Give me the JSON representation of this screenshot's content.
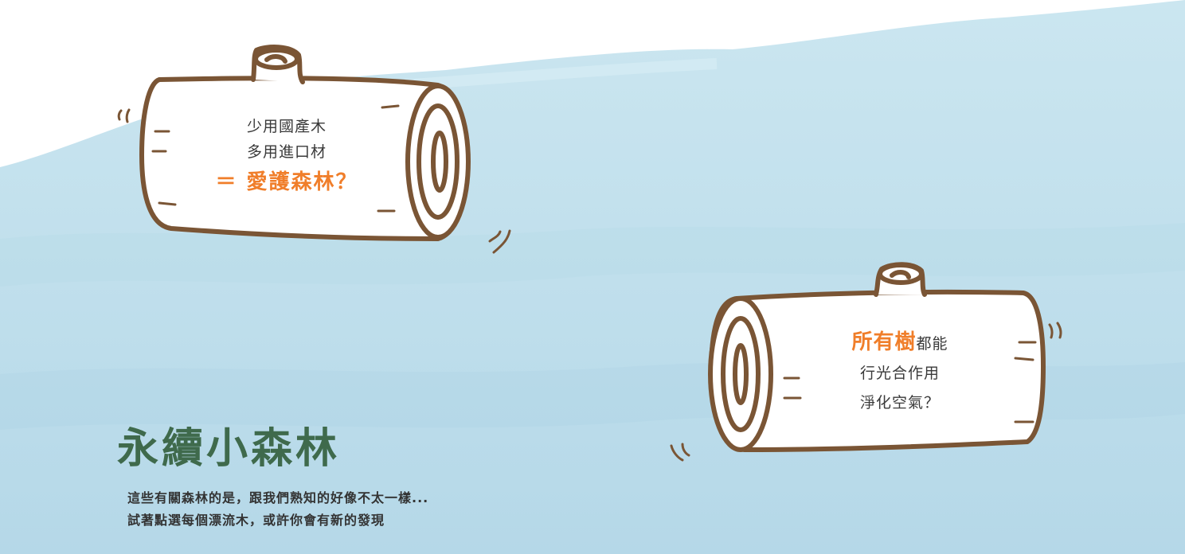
{
  "logs": [
    {
      "line1": "少用國產木",
      "line2": "多用進口材",
      "highlight": "＝ 愛護森林？"
    },
    {
      "highlight": "所有樹",
      "line1_rest": "都能",
      "line2": "行光合作用",
      "line3": "淨化空氣？"
    }
  ],
  "title": "永續小森林",
  "description": {
    "line1": "這些有關森林的是，跟我們熟知的好像不太一樣...",
    "line2": "試著點選每個漂流木，或許你會有新的發現"
  },
  "colors": {
    "water": "#c4e2ee",
    "log_outline": "#7a5535",
    "highlight": "#f07e2a",
    "title": "#3f6a4c"
  }
}
